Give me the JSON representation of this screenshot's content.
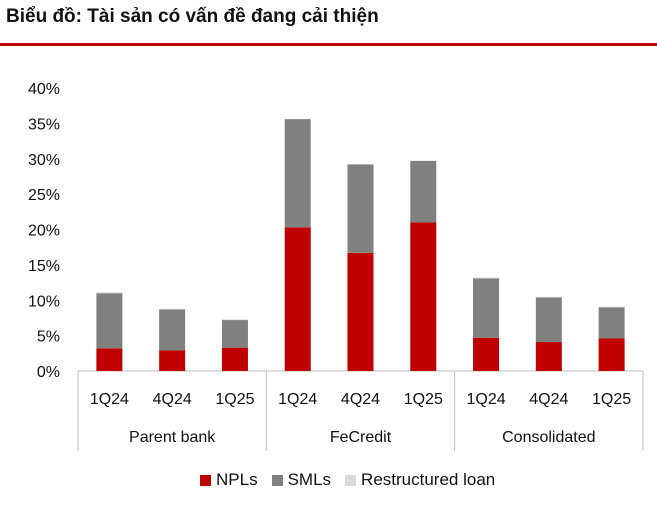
{
  "title": "Biểu đồ: Tài sản có vấn đề đang cải thiện",
  "colors": {
    "accent": "#c00000",
    "NPLs": "#c00000",
    "SMLs": "#808080",
    "Restructured loan": "#d9d9d9",
    "axis": "#bfbfbf"
  },
  "chart_data": {
    "type": "bar",
    "stacked": true,
    "groups": [
      {
        "label": "Parent bank",
        "categories": [
          "1Q24",
          "4Q24",
          "1Q25"
        ]
      },
      {
        "label": "FeCredit",
        "categories": [
          "1Q24",
          "4Q24",
          "1Q25"
        ]
      },
      {
        "label": "Consolidated",
        "categories": [
          "1Q24",
          "4Q24",
          "1Q25"
        ]
      }
    ],
    "series": [
      {
        "name": "NPLs",
        "values": [
          3.2,
          2.9,
          3.3,
          20.3,
          16.7,
          21.0,
          4.7,
          4.1,
          4.6
        ]
      },
      {
        "name": "SMLs",
        "values": [
          7.8,
          5.8,
          3.9,
          15.3,
          12.5,
          8.7,
          8.4,
          6.3,
          4.4
        ]
      },
      {
        "name": "Restructured loan",
        "values": [
          0.1,
          0.1,
          0.1,
          0,
          0,
          0,
          0.1,
          0.1,
          0.1
        ]
      }
    ],
    "ylim": [
      0,
      40
    ],
    "yticks": [
      "0%",
      "5%",
      "10%",
      "15%",
      "20%",
      "25%",
      "30%",
      "35%",
      "40%"
    ],
    "grid": false,
    "legend_position": "bottom"
  }
}
